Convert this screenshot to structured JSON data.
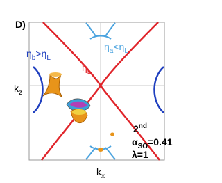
{
  "panel_label": "D)",
  "labels": {
    "eta_b": [
      "η",
      "b",
      ">η",
      "L"
    ],
    "eta_a": [
      "η",
      "a",
      "<η",
      "L"
    ],
    "eta_L": [
      "η",
      "L"
    ],
    "k_z": [
      "k",
      "z"
    ],
    "k_x": [
      "k",
      "x"
    ],
    "order": [
      "2",
      "nd"
    ],
    "alpha": [
      "α",
      "SO",
      "=0.41"
    ],
    "lambda": [
      "λ=1"
    ]
  }
}
